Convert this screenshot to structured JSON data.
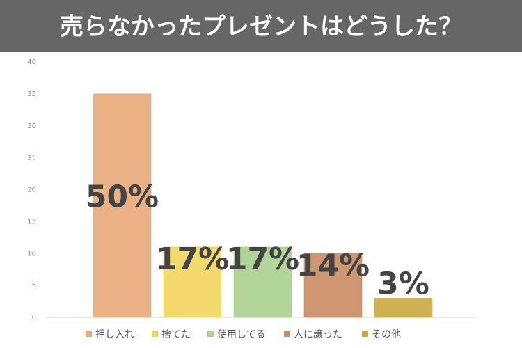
{
  "chart_data": {
    "type": "bar",
    "title": "売らなかったプレゼントはどうした？",
    "categories": [
      "押し入れ",
      "捨てた",
      "使用してる",
      "人に譲った",
      "その他"
    ],
    "values": [
      35,
      11,
      11,
      10,
      3
    ],
    "colors": [
      "#e8a878",
      "#f3d55c",
      "#a9d08e",
      "#c98c62",
      "#c9a93e"
    ],
    "annotations": [
      "50%",
      "17%",
      "17%",
      "14%",
      "3%"
    ],
    "ylim": [
      0,
      40
    ],
    "yticks": [
      0,
      5,
      10,
      15,
      20,
      25,
      30,
      35,
      40
    ],
    "grid": false
  }
}
